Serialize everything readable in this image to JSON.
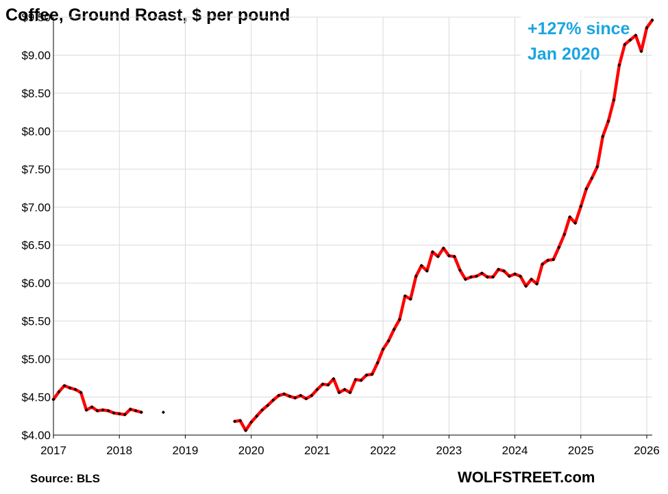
{
  "chart_data": {
    "type": "line",
    "title": "Coffee, Ground Roast, $ per pound",
    "y_tick_labels": [
      "$4.00",
      "$4.50",
      "$5.00",
      "$5.50",
      "$6.00",
      "$6.50",
      "$7.00",
      "$7.50",
      "$8.00",
      "$8.50",
      "$9.00",
      "$9.50"
    ],
    "x_tick_labels": [
      "2017",
      "2018",
      "2019",
      "2020",
      "2021",
      "2022",
      "2023",
      "2024",
      "2025",
      "2026"
    ],
    "ylim": [
      4.0,
      9.5
    ],
    "xlim": [
      "2017-01",
      "2026-02"
    ],
    "grid": true,
    "source": "Source: BLS",
    "brand": "WOLFSTREET.com",
    "annotation": [
      "+127% since",
      "Jan 2020"
    ],
    "colors": {
      "line": "#ff0000",
      "markers": "#000000",
      "annotation": "#1aa5e0"
    },
    "series": [
      {
        "segments": [
          {
            "start": "2017-01",
            "values": [
              4.47,
              4.57,
              4.65,
              4.62,
              4.6,
              4.56,
              4.33,
              4.37,
              4.32,
              4.33,
              4.32,
              4.29,
              4.28,
              4.27,
              4.34,
              4.32,
              4.3
            ]
          },
          {
            "start": "2018-09",
            "values": [
              4.3
            ]
          },
          {
            "start": "2019-10",
            "values": [
              4.18,
              4.19,
              4.06,
              4.17,
              4.25,
              4.33,
              4.39,
              4.46,
              4.52,
              4.54,
              4.51,
              4.49,
              4.52,
              4.48,
              4.52,
              4.6,
              4.67,
              4.66,
              4.74,
              4.56,
              4.6,
              4.56,
              4.73,
              4.72,
              4.79,
              4.8,
              4.95,
              5.13,
              5.24,
              5.39,
              5.52,
              5.83,
              5.79,
              6.09,
              6.23,
              6.16,
              6.41,
              6.35,
              6.46,
              6.36,
              6.35,
              6.17,
              6.05,
              6.08,
              6.09,
              6.13,
              6.08,
              6.08,
              6.18,
              6.16,
              6.09,
              6.12,
              6.09,
              5.96,
              6.05,
              5.99,
              6.25,
              6.3,
              6.31,
              6.47,
              6.64,
              6.87,
              6.79,
              7.01,
              7.24,
              7.38,
              7.53,
              7.93,
              8.13,
              8.41,
              8.87,
              9.14,
              9.2,
              9.26,
              9.05,
              9.36,
              9.46
            ]
          }
        ]
      }
    ]
  }
}
